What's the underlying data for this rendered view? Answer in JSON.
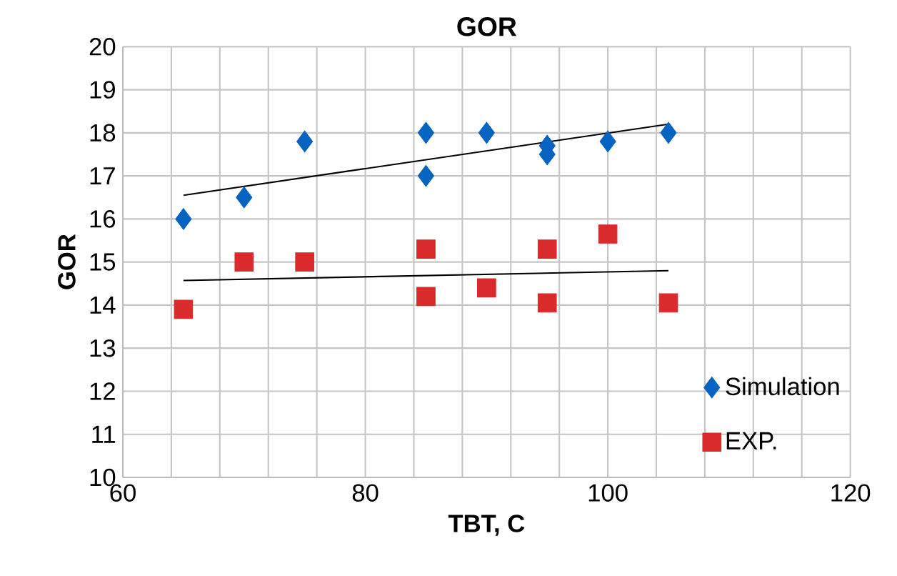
{
  "chart_data": {
    "type": "scatter",
    "title": "GOR",
    "xlabel": "TBT, C",
    "ylabel": "GOR",
    "xlim": [
      60,
      120
    ],
    "xticks": [
      60,
      {
        "value": 64,
        "label": null
      },
      {
        "value": 68,
        "label": null
      },
      {
        "value": 72,
        "label": null
      },
      {
        "value": 76,
        "label": null
      },
      80,
      {
        "value": 84,
        "label": null
      },
      {
        "value": 88,
        "label": null
      },
      {
        "value": 92,
        "label": null
      },
      {
        "value": 96,
        "label": null
      },
      100,
      {
        "value": 104,
        "label": null
      },
      {
        "value": 108,
        "label": null
      },
      {
        "value": 112,
        "label": null
      },
      {
        "value": 116,
        "label": null
      },
      120
    ],
    "ylim": [
      10,
      20
    ],
    "yticks": [
      10,
      11,
      12,
      13,
      14,
      15,
      16,
      17,
      18,
      19,
      20
    ],
    "grid": true,
    "legend": "bottom right",
    "series": [
      {
        "name": "Simulation",
        "color": "#0563c1",
        "marker": "diamond",
        "x": [
          65,
          70,
          75,
          85,
          85,
          90,
          95,
          95,
          100,
          105
        ],
        "values": [
          16,
          16.5,
          17.8,
          18,
          17,
          18,
          17.7,
          17.5,
          17.8,
          18
        ]
      },
      {
        "name": "EXP.",
        "color": "#d92b2b",
        "marker": "square",
        "x": [
          65,
          70,
          75,
          85,
          85,
          90,
          95,
          95,
          100,
          105
        ],
        "values": [
          13.9,
          15,
          15,
          15.3,
          14.2,
          14.4,
          15.3,
          14.05,
          15.65,
          14.05
        ]
      },
      {
        "type": "line",
        "color": "#000000",
        "marker": "none",
        "x": [
          65,
          105
        ],
        "values": [
          16.55,
          18.2
        ]
      },
      {
        "type": "line",
        "color": "#000000",
        "marker": "none",
        "x": [
          65,
          105
        ],
        "values": [
          14.57,
          14.8
        ]
      }
    ]
  }
}
